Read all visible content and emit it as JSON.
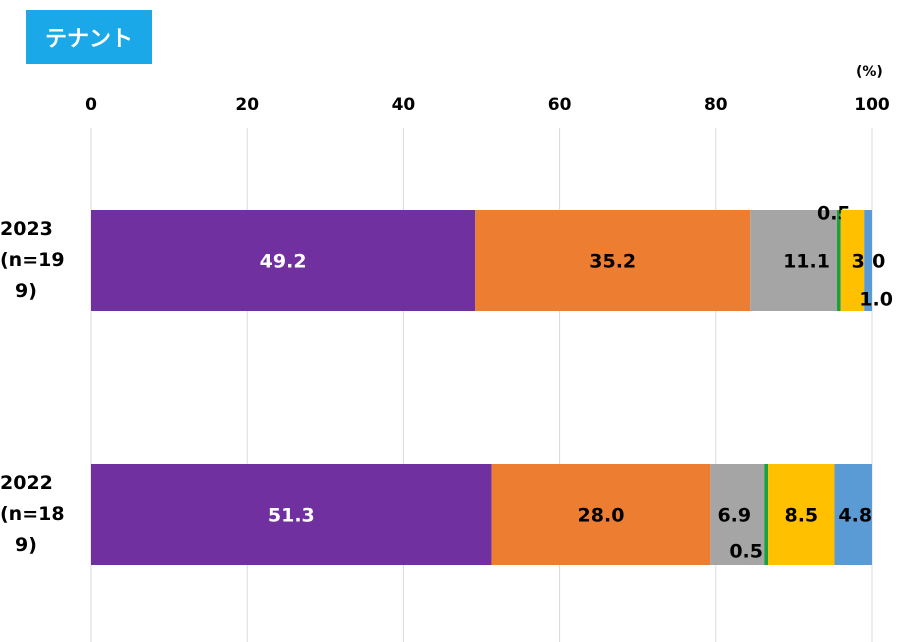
{
  "header": {
    "title": "テナント"
  },
  "chart_data": {
    "type": "bar",
    "orientation": "horizontal",
    "stacked": true,
    "unit_label": "(%)",
    "xlim": [
      0,
      100
    ],
    "x_ticks": [
      "0",
      "20",
      "40",
      "60",
      "80",
      "100"
    ],
    "grid": true,
    "categories": [
      {
        "label_lines": [
          "2023",
          "(n=19",
          "9)"
        ]
      },
      {
        "label_lines": [
          "2022",
          "(n=18",
          "9)"
        ]
      }
    ],
    "series": [
      {
        "color": "#7030a0",
        "values": [
          49.2,
          51.3
        ],
        "labels": [
          "49.2",
          "51.3"
        ]
      },
      {
        "color": "#ed7d31",
        "values": [
          35.2,
          28.0
        ],
        "labels": [
          "35.2",
          "28.0"
        ]
      },
      {
        "color": "#a5a5a5",
        "values": [
          11.1,
          6.9
        ],
        "labels": [
          "11.1",
          "6.9"
        ]
      },
      {
        "color": "#1e9e3e",
        "values": [
          0.5,
          0.5
        ],
        "labels": [
          "0.5",
          "0.5"
        ]
      },
      {
        "color": "#ffc000",
        "values": [
          3.0,
          8.5
        ],
        "labels": [
          "3.0",
          "8.5"
        ]
      },
      {
        "color": "#5b9bd5",
        "values": [
          1.0,
          4.8
        ],
        "labels": [
          "1.0",
          "4.8"
        ]
      }
    ]
  }
}
